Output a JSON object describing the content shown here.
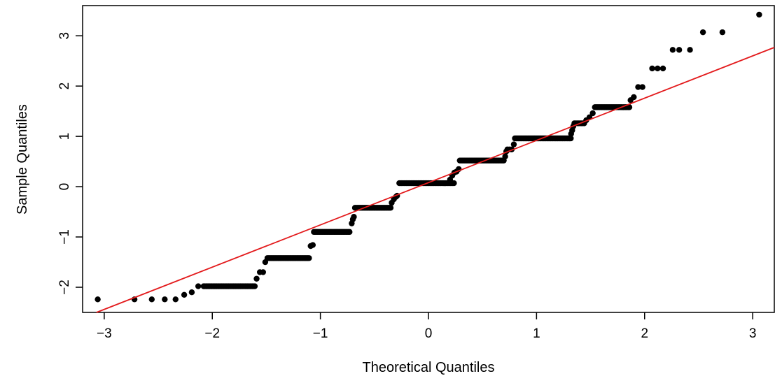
{
  "chart_data": {
    "type": "scatter",
    "title": "",
    "xlabel": "Theoretical Quantiles",
    "ylabel": "Sample Quantiles",
    "xlim": [
      -3.2,
      3.2
    ],
    "ylim": [
      -2.5,
      3.6
    ],
    "x_ticks": [
      -3,
      -2,
      -1,
      0,
      1,
      2,
      3
    ],
    "y_ticks": [
      -2,
      -1,
      0,
      1,
      2,
      3
    ],
    "x_tick_labels": [
      "−3",
      "−2",
      "−1",
      "0",
      "1",
      "2",
      "3"
    ],
    "y_tick_labels": [
      "−2",
      "−1",
      "0",
      "1",
      "2",
      "3"
    ],
    "grid": false,
    "legend": "none",
    "point_color": "#000000",
    "line_color": "#e31a1c",
    "reference_line": {
      "intercept": 0.08,
      "slope": 0.84
    },
    "points": [
      [
        -3.06,
        -2.24
      ],
      [
        -2.72,
        -2.24
      ],
      [
        -2.56,
        -2.24
      ],
      [
        -2.44,
        -2.24
      ],
      [
        -2.34,
        -2.24
      ],
      [
        -2.26,
        -2.15
      ],
      [
        -2.19,
        -2.1
      ],
      [
        -2.13,
        -1.98
      ],
      {
        "run": [
          -2.08,
          -1.6,
          0.011,
          -1.98
        ]
      },
      [
        -1.59,
        -1.83
      ],
      [
        -1.56,
        -1.7
      ],
      [
        -1.53,
        -1.7
      ],
      [
        -1.51,
        -1.5
      ],
      {
        "run": [
          -1.49,
          -1.1,
          0.011,
          -1.42
        ]
      },
      [
        -1.09,
        -1.18
      ],
      [
        -1.07,
        -1.16
      ],
      {
        "run": [
          -1.06,
          -0.72,
          0.011,
          -0.9
        ]
      },
      [
        -0.71,
        -0.73
      ],
      [
        -0.7,
        -0.65
      ],
      [
        -0.69,
        -0.6
      ],
      {
        "run": [
          -0.68,
          -0.35,
          0.011,
          -0.42
        ]
      },
      [
        -0.34,
        -0.32
      ],
      [
        -0.32,
        -0.25
      ],
      [
        -0.3,
        -0.2
      ],
      [
        -0.29,
        -0.18
      ],
      {
        "run": [
          -0.27,
          0.24,
          0.011,
          0.07
        ]
      },
      [
        0.2,
        0.14
      ],
      [
        0.22,
        0.22
      ],
      [
        0.24,
        0.28
      ],
      [
        0.26,
        0.3
      ],
      [
        0.28,
        0.35
      ],
      {
        "run": [
          0.29,
          0.7,
          0.011,
          0.52
        ]
      },
      [
        0.71,
        0.6
      ],
      [
        0.72,
        0.7
      ],
      [
        0.73,
        0.74
      ],
      [
        0.75,
        0.74
      ],
      [
        0.77,
        0.74
      ],
      [
        0.79,
        0.84
      ],
      {
        "run": [
          0.8,
          1.32,
          0.011,
          0.96
        ]
      },
      [
        1.32,
        1.05
      ],
      [
        1.33,
        1.12
      ],
      [
        1.34,
        1.2
      ],
      {
        "run": [
          1.35,
          1.45,
          0.013,
          1.26
        ]
      },
      [
        1.46,
        1.32
      ],
      [
        1.49,
        1.38
      ],
      [
        1.52,
        1.46
      ],
      {
        "run": [
          1.54,
          1.86,
          0.011,
          1.58
        ]
      },
      [
        1.87,
        1.72
      ],
      [
        1.9,
        1.78
      ],
      [
        1.94,
        1.98
      ],
      [
        1.98,
        1.98
      ],
      [
        2.07,
        2.35
      ],
      [
        2.12,
        2.35
      ],
      [
        2.17,
        2.35
      ],
      [
        2.26,
        2.72
      ],
      [
        2.32,
        2.72
      ],
      [
        2.42,
        2.72
      ],
      [
        2.54,
        3.07
      ],
      [
        2.72,
        3.07
      ],
      [
        3.06,
        3.42
      ]
    ]
  }
}
